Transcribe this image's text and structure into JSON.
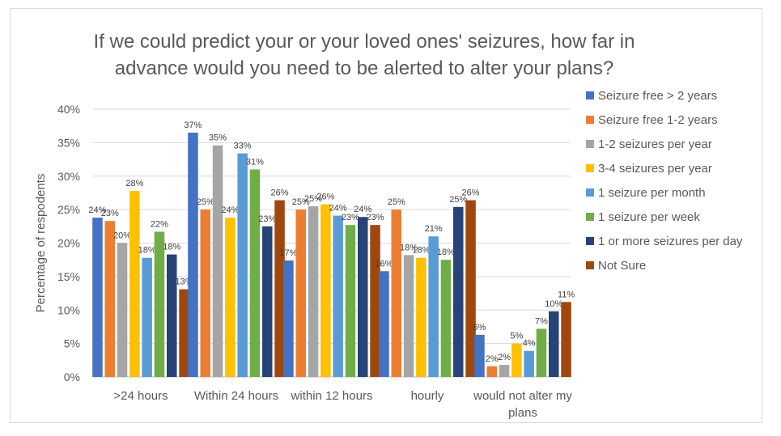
{
  "chart_data": {
    "type": "bar",
    "title_line1": "If we could predict your or your loved ones' seizures, how far in",
    "title_line2": "advance would you need to be alerted to alter your plans?",
    "ylabel": "Percentage of respodents",
    "xlabel": "",
    "ylim": [
      0,
      40
    ],
    "yticks": [
      "0%",
      "5%",
      "10%",
      "15%",
      "20%",
      "25%",
      "30%",
      "35%",
      "40%"
    ],
    "grid": true,
    "legend_position": "right",
    "categories": [
      ">24 hours",
      "Within 24 hours",
      "within 12 hours",
      "hourly",
      "would not alter my plans"
    ],
    "series": [
      {
        "name": "Seizure free > 2 years",
        "color": "#4472c4",
        "values": [
          23.8,
          36.5,
          17.4,
          15.8,
          6.3
        ],
        "labels": [
          "24%",
          "37%",
          "17%",
          "16%",
          "6%"
        ]
      },
      {
        "name": "Seizure free 1-2 years",
        "color": "#ed7d31",
        "values": [
          23.3,
          25.0,
          25.0,
          25.0,
          1.6
        ],
        "labels": [
          "23%",
          "25%",
          "25%",
          "25%",
          "2%"
        ]
      },
      {
        "name": "1-2 seizures per year",
        "color": "#a5a5a5",
        "values": [
          20.0,
          34.6,
          25.5,
          18.2,
          1.8
        ],
        "labels": [
          "20%",
          "35%",
          "25%",
          "18%",
          "2%"
        ]
      },
      {
        "name": "3-4 seizures per year",
        "color": "#ffc000",
        "values": [
          27.8,
          23.8,
          25.8,
          17.8,
          5.0
        ],
        "labels": [
          "28%",
          "24%",
          "26%",
          "18%",
          "5%"
        ]
      },
      {
        "name": "1 seizure per month",
        "color": "#5b9bd5",
        "values": [
          17.8,
          33.4,
          24.1,
          21.0,
          3.9
        ],
        "labels": [
          "18%",
          "33%",
          "24%",
          "21%",
          "4%"
        ]
      },
      {
        "name": "1 seizure per week",
        "color": "#70ad47",
        "values": [
          21.7,
          31.0,
          22.7,
          17.5,
          7.2
        ],
        "labels": [
          "22%",
          "31%",
          "23%",
          "18%",
          "7%"
        ]
      },
      {
        "name": "1 or more seizures per day",
        "color": "#264478",
        "values": [
          18.3,
          22.5,
          23.9,
          25.4,
          9.8
        ],
        "labels": [
          "18%",
          "23%",
          "24%",
          "25%",
          "10%"
        ]
      },
      {
        "name": "Not Sure",
        "color": "#9e480e",
        "values": [
          13.1,
          26.4,
          22.7,
          26.4,
          11.2
        ],
        "labels": [
          "13%",
          "26%",
          "23%",
          "26%",
          "11%"
        ]
      }
    ]
  }
}
